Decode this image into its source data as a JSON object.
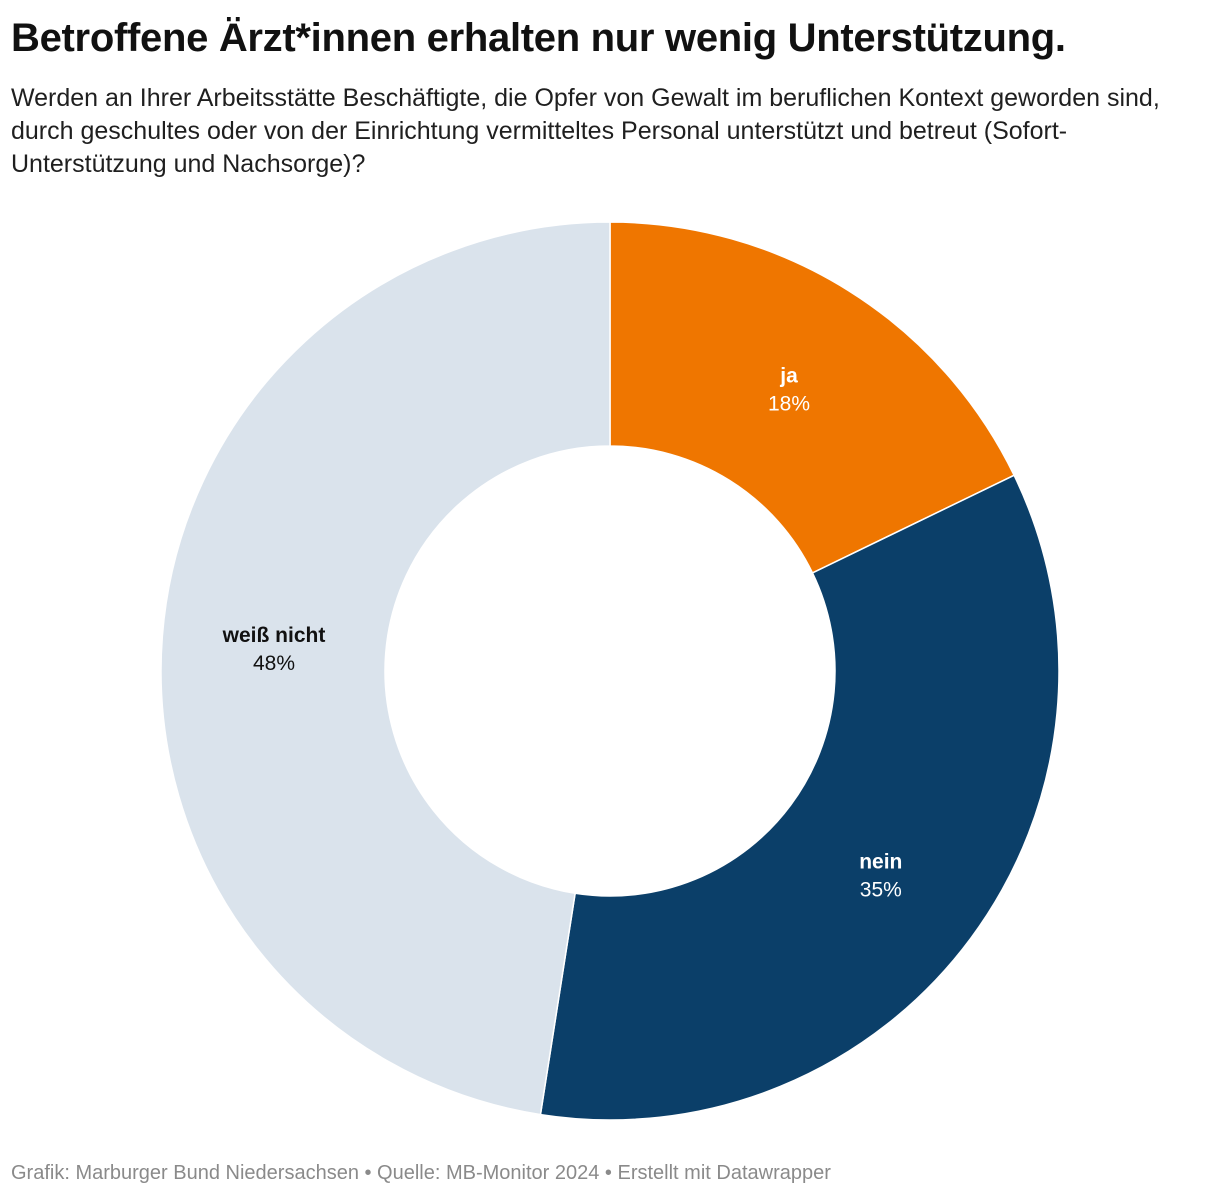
{
  "header": {
    "title": "Betroffene Ärzt*innen erhalten nur wenig Unterstützung.",
    "subtitle": "Werden an Ihrer Arbeitsstätte Beschäftigte, die Opfer von Gewalt im beruflichen Kontext geworden sind, durch geschultes oder von der Einrichtung vermitteltes Personal unterstützt und betreut (Sofort-Unterstützung und Nachsorge)?"
  },
  "chart_data": {
    "type": "pie",
    "variant": "donut",
    "title": "Betroffene Ärzt*innen erhalten nur wenig Unterstützung.",
    "subtitle": "Werden an Ihrer Arbeitsstätte Beschäftigte, die Opfer von Gewalt im beruflichen Kontext geworden sind, durch geschultes oder von der Einrichtung vermitteltes Personal unterstützt und betreut (Sofort-Unterstützung und Nachsorge)?",
    "unit": "%",
    "start": "12 o'clock, clockwise",
    "slices": [
      {
        "label": "ja",
        "value": 18,
        "display": "18%",
        "color": "#ef7600",
        "label_color": "#ffffff"
      },
      {
        "label": "nein",
        "value": 35,
        "display": "35%",
        "color": "#0b3f69",
        "label_color": "#ffffff"
      },
      {
        "label": "weiß nicht",
        "value": 48,
        "display": "48%",
        "color": "#dae3ec",
        "label_color": "#111111"
      }
    ]
  },
  "footer": {
    "credit": "Grafik: Marburger Bund Niedersachsen • Quelle: MB-Monitor 2024 • Erstellt mit Datawrapper"
  }
}
